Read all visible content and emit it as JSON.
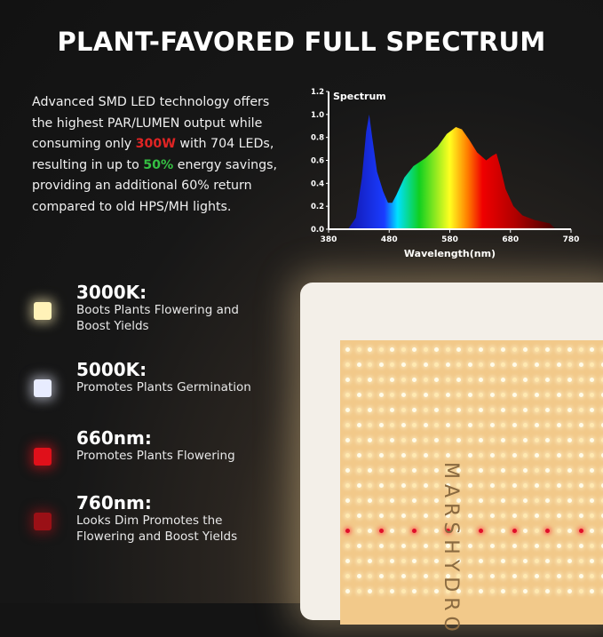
{
  "title": "PLANT-FAVORED FULL SPECTRUM",
  "intro": {
    "p1": "Advanced SMD LED technology offers the highest PAR/LUMEN output while consuming only ",
    "watt": "300W",
    "p2": " with 704 LEDs, resulting in up to ",
    "pct": "50%",
    "p3": " energy savings, providing an additional 60% return compared to old HPS/MH lights."
  },
  "colors": {
    "watt": "#e02424",
    "pct": "#35c043"
  },
  "features": [
    {
      "title": "3000K:",
      "desc": "Boots Plants Flowering and Boost Yields",
      "color": "#fff2b8"
    },
    {
      "title": "5000K:",
      "desc": "Promotes Plants Germination",
      "color": "#e8ecff"
    },
    {
      "title": "660nm:",
      "desc": "Promotes Plants Flowering",
      "color": "#e0101a"
    },
    {
      "title": "760nm:",
      "desc": "Looks Dim Promotes the Flowering and Boost Yields",
      "color": "#9a1016"
    }
  ],
  "product": {
    "brand": "MARS HYDRO"
  },
  "chart_data": {
    "type": "area",
    "title": "Spectrum",
    "xlabel": "Wavelength(nm)",
    "ylabel": "",
    "xlim": [
      380,
      780
    ],
    "ylim": [
      0,
      1.2
    ],
    "xticks": [
      "380",
      "480",
      "580",
      "680",
      "780"
    ],
    "yticks": [
      "0.0",
      "0.2",
      "0.4",
      "0.6",
      "0.8",
      "1.0",
      "1.2"
    ],
    "x": [
      412,
      425,
      435,
      442,
      447,
      452,
      460,
      470,
      478,
      485,
      492,
      505,
      520,
      540,
      560,
      575,
      590,
      600,
      612,
      625,
      640,
      650,
      657,
      663,
      672,
      685,
      700,
      720,
      745,
      755
    ],
    "y": [
      0,
      0.1,
      0.45,
      0.85,
      1.0,
      0.8,
      0.5,
      0.33,
      0.23,
      0.23,
      0.3,
      0.45,
      0.55,
      0.62,
      0.72,
      0.83,
      0.89,
      0.87,
      0.78,
      0.67,
      0.6,
      0.64,
      0.66,
      0.55,
      0.35,
      0.2,
      0.12,
      0.08,
      0.05,
      0
    ]
  }
}
